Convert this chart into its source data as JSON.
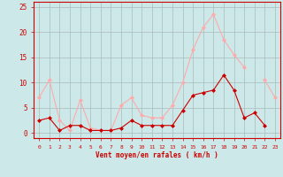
{
  "hours": [
    0,
    1,
    2,
    3,
    4,
    5,
    6,
    7,
    8,
    9,
    10,
    11,
    12,
    13,
    14,
    15,
    16,
    17,
    18,
    19,
    20,
    21,
    22,
    23
  ],
  "wind_avg": [
    2.5,
    3.0,
    0.5,
    1.5,
    1.5,
    0.5,
    0.5,
    0.5,
    1.0,
    2.5,
    1.5,
    1.5,
    1.5,
    1.5,
    4.5,
    7.5,
    8.0,
    8.5,
    11.5,
    8.5,
    3.0,
    4.0,
    1.5,
    null
  ],
  "wind_gust": [
    7.0,
    10.5,
    2.5,
    0.5,
    6.5,
    1.0,
    0.5,
    0.5,
    5.5,
    7.0,
    3.5,
    3.0,
    3.0,
    5.5,
    10.0,
    16.5,
    21.0,
    23.5,
    18.5,
    15.5,
    13.0,
    null,
    10.5,
    7.0
  ],
  "wind_avg_color": "#cc0000",
  "wind_gust_color": "#ffaaaa",
  "bg_color": "#cce8e8",
  "grid_color": "#aabbbb",
  "axis_color": "#cc0000",
  "xlabel": "Vent moyen/en rafales ( km/h )",
  "ylim": [
    -1,
    26
  ],
  "yticks": [
    0,
    5,
    10,
    15,
    20,
    25
  ],
  "marker": "D",
  "markersize": 2.0,
  "linewidth": 0.8
}
